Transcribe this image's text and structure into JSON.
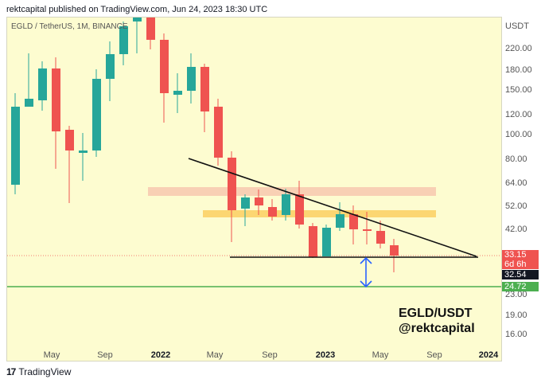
{
  "header": {
    "published_by": "rektcapital published on TradingView.com, Jun 24, 2023 18:30 UTC"
  },
  "chart": {
    "symbol_label": "EGLD / TetherUS, 1M, BINANCE",
    "watermark_line1": "EGLD/USDT",
    "watermark_line2": "@rektcapital"
  },
  "yaxis": {
    "currency": "USDT",
    "labels": [
      "220.00",
      "180.00",
      "150.00",
      "120.00",
      "100.00",
      "80.00",
      "64.00",
      "52.00",
      "42.00",
      "23.00",
      "19.00",
      "16.00"
    ],
    "current_price": "33.15",
    "countdown": "6d 6h",
    "support_price": "32.54",
    "green_line_price": "24.72"
  },
  "xaxis": {
    "labels": [
      "May",
      "Sep",
      "2022",
      "May",
      "Sep",
      "2023",
      "May",
      "Sep",
      "2024"
    ]
  },
  "footer": {
    "brand": "TradingView",
    "logo_text": "17"
  },
  "colors": {
    "up": "#26a69a",
    "down": "#ef5350",
    "background": "#fdfcd0",
    "green_line": "#4caf50",
    "arrow": "#2962ff"
  }
}
